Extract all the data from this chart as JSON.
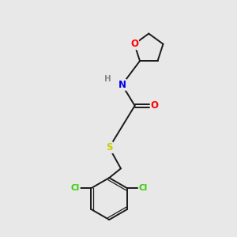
{
  "bg_color": "#e8e8e8",
  "bond_color": "#1a1a1a",
  "atom_colors": {
    "O": "#ff0000",
    "N": "#0000ee",
    "S": "#cccc00",
    "Cl": "#33cc00",
    "H": "#888888",
    "C": "#1a1a1a"
  },
  "bond_width": 1.4,
  "font_size_atom": 8.5,
  "font_size_small": 7.5,
  "xlim": [
    0,
    10
  ],
  "ylim": [
    0,
    10
  ]
}
